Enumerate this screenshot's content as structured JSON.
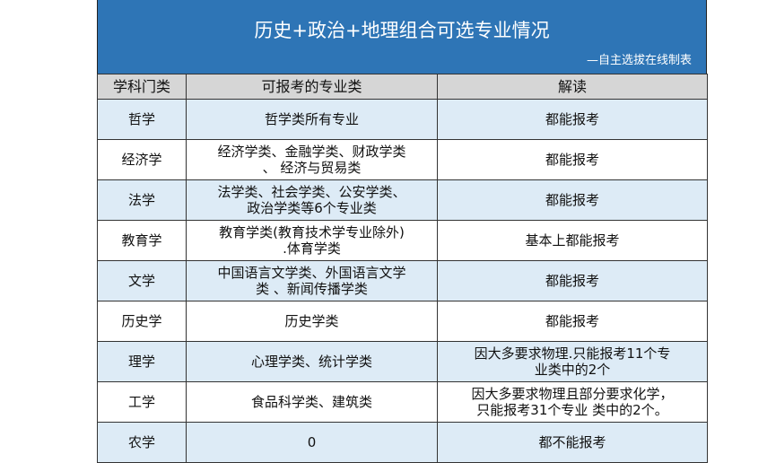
{
  "title": "历史+政治+地理组合可选专业情况",
  "subtitle": "—自主选拔在线制表",
  "colors": {
    "title_band": "#2e75b6",
    "header_bg": "#d6d6d6",
    "alt_row": "#ddebf6"
  },
  "headers": [
    "学科门类",
    "可报考的专业类",
    "解读"
  ],
  "rows": [
    {
      "category": "哲学",
      "majors": [
        "哲学类所有专业"
      ],
      "note": [
        "都能报考"
      ]
    },
    {
      "category": "经济学",
      "majors": [
        "经济学类、金融学类、财政学类",
        "、 经济与贸易类"
      ],
      "note": [
        "都能报考"
      ]
    },
    {
      "category": "法学",
      "majors": [
        "法学类、社会学类、公安学类、",
        "政治学类等6个专业类"
      ],
      "note": [
        "都能报考"
      ]
    },
    {
      "category": "教育学",
      "majors": [
        "教育学类(教育技术学专业除外)",
        ".体育学类"
      ],
      "note": [
        "基本上都能报考"
      ]
    },
    {
      "category": "文学",
      "majors": [
        "中国语言文学类、外国语言文学",
        "类 、新闻传播学类"
      ],
      "note": [
        "都能报考"
      ]
    },
    {
      "category": "历史学",
      "majors": [
        "历史学类"
      ],
      "note": [
        "都能报考"
      ]
    },
    {
      "category": "理学",
      "majors": [
        "心理学类、统计学类"
      ],
      "note": [
        "因大多要求物理.只能报考11个专",
        "业类中的2个"
      ]
    },
    {
      "category": "工学",
      "majors": [
        "食品科学类、建筑类"
      ],
      "note": [
        "因大多要求物理且部分要求化学，",
        "只能报考31个专业 类中的2个。"
      ]
    },
    {
      "category": "农学",
      "majors": [
        "0"
      ],
      "note": [
        "都不能报考"
      ]
    }
  ]
}
